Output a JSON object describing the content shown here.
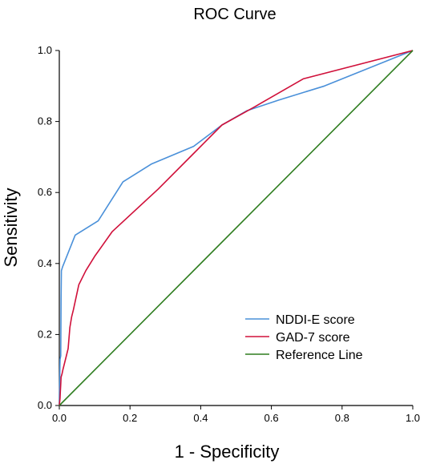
{
  "chart_data": {
    "type": "line",
    "title": "ROC Curve",
    "xlabel": "1 - Specificity",
    "ylabel": "Sensitivity",
    "xlim": [
      0,
      1
    ],
    "ylim": [
      0,
      1
    ],
    "x_ticks": [
      "0.0",
      "0.2",
      "0.4",
      "0.6",
      "0.8",
      "1.0"
    ],
    "y_ticks": [
      "0.0",
      "0.2",
      "0.4",
      "0.6",
      "0.8",
      "1.0"
    ],
    "grid": false,
    "legend_position": "bottom-right",
    "series": [
      {
        "name": "NDDI-E score",
        "color": "#4a90d9",
        "x": [
          0,
          0.002,
          0.004,
          0.005,
          0.006,
          0.009,
          0.045,
          0.11,
          0.18,
          0.26,
          0.38,
          0.46,
          0.53,
          0.62,
          0.75,
          1.0
        ],
        "y": [
          0,
          0.13,
          0.14,
          0.3,
          0.38,
          0.39,
          0.48,
          0.52,
          0.63,
          0.68,
          0.73,
          0.79,
          0.83,
          0.86,
          0.9,
          1.0
        ]
      },
      {
        "name": "GAD-7 score",
        "color": "#d0103a",
        "x": [
          0,
          0.002,
          0.003,
          0.004,
          0.005,
          0.008,
          0.01,
          0.02,
          0.025,
          0.03,
          0.035,
          0.04,
          0.055,
          0.075,
          0.1,
          0.15,
          0.28,
          0.38,
          0.46,
          0.55,
          0.69,
          1.0
        ],
        "y": [
          0,
          0.02,
          0.04,
          0.06,
          0.08,
          0.09,
          0.1,
          0.14,
          0.16,
          0.22,
          0.25,
          0.27,
          0.34,
          0.38,
          0.42,
          0.49,
          0.61,
          0.71,
          0.79,
          0.84,
          0.92,
          1.0
        ]
      },
      {
        "name": "Reference Line",
        "color": "#2e7d1f",
        "x": [
          0,
          1
        ],
        "y": [
          0,
          1
        ]
      }
    ]
  }
}
